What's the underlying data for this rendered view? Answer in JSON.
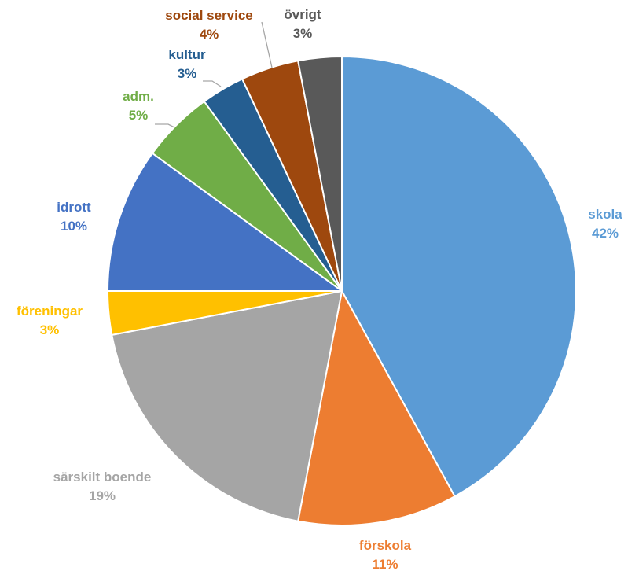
{
  "chart_data": {
    "type": "pie",
    "title": "",
    "slices": [
      {
        "label": "skola",
        "value": 42,
        "value_label": "42%",
        "color": "#5b9bd5"
      },
      {
        "label": "förskola",
        "value": 11,
        "value_label": "11%",
        "color": "#ed7d31"
      },
      {
        "label": "särskilt boende",
        "value": 19,
        "value_label": "19%",
        "color": "#a5a5a5"
      },
      {
        "label": "föreningar",
        "value": 3,
        "value_label": "3%",
        "color": "#ffc000"
      },
      {
        "label": "idrott",
        "value": 10,
        "value_label": "10%",
        "color": "#4472c4"
      },
      {
        "label": "adm.",
        "value": 5,
        "value_label": "5%",
        "color": "#70ad47"
      },
      {
        "label": "kultur",
        "value": 3,
        "value_label": "3%",
        "color": "#255e91"
      },
      {
        "label": "social service",
        "value": 4,
        "value_label": "4%",
        "color": "#9e480e"
      },
      {
        "label": "övrigt",
        "value": 3,
        "value_label": "3%",
        "color": "#595959"
      }
    ],
    "legend": "none",
    "data_labels": "outside"
  }
}
